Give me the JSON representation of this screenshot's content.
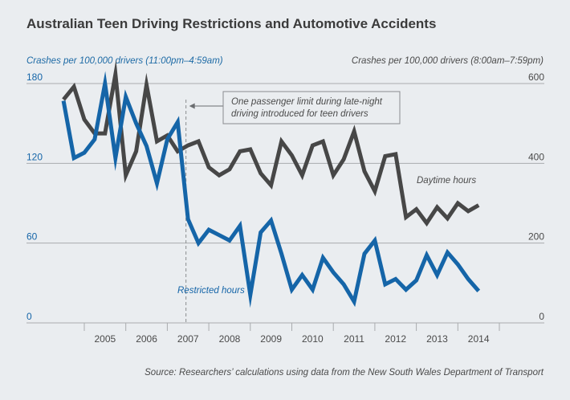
{
  "title": "Australian Teen Driving Restrictions and Automotive Accidents",
  "left_axis_title": "Crashes per 100,000 drivers (11:00pm–4:59am)",
  "right_axis_title": "Crashes per 100,000 drivers (8:00am–7:59pm)",
  "source": "Source: Researchers’ calculations using data from the New South Wales Department of Transport",
  "annotation": {
    "line1": "One passenger limit during late-night",
    "line2": "driving introduced for teen drivers",
    "x": 2007.45
  },
  "colors": {
    "restricted": "#1565a8",
    "daytime": "#474747",
    "grid": "#a9abae",
    "left_ticks": "#1565a8",
    "right_ticks": "#4a4a4a",
    "background": "#eaedf0"
  },
  "chart_data": {
    "type": "line",
    "xlim": [
      2004.42,
      2015.58
    ],
    "x_ticks": [
      "2005",
      "2006",
      "2007",
      "2008",
      "2009",
      "2010",
      "2011",
      "2012",
      "2013",
      "2014"
    ],
    "y_left": {
      "lim": [
        0,
        180
      ],
      "ticks": [
        "0",
        "60",
        "120",
        "180"
      ]
    },
    "y_right": {
      "lim": [
        0,
        600
      ],
      "ticks": [
        "0",
        "200",
        "400",
        "600"
      ]
    },
    "grid": true,
    "series": [
      {
        "name": "Restricted hours",
        "axis": "left",
        "x": [
          2004.5,
          2004.75,
          2005.0,
          2005.25,
          2005.5,
          2005.75,
          2006.0,
          2006.25,
          2006.5,
          2006.75,
          2007.0,
          2007.25,
          2007.5,
          2007.75,
          2008.0,
          2008.25,
          2008.5,
          2008.75,
          2009.0,
          2009.25,
          2009.5,
          2009.75,
          2010.0,
          2010.25,
          2010.5,
          2010.75,
          2011.0,
          2011.25,
          2011.5,
          2011.75,
          2012.0,
          2012.25,
          2012.5,
          2012.75,
          2013.0,
          2013.25,
          2013.5,
          2013.75,
          2014.0,
          2014.25,
          2014.5
        ],
        "values": [
          167,
          124,
          128,
          138,
          180,
          124,
          170,
          150,
          133,
          105,
          138,
          151,
          78,
          60,
          70,
          66,
          62,
          73,
          21,
          68,
          77,
          52,
          25,
          36,
          25,
          49,
          38,
          29,
          16,
          52,
          62,
          29,
          33,
          25,
          32,
          51,
          36,
          53,
          44,
          33,
          24
        ]
      },
      {
        "name": "Daytime hours",
        "axis": "right",
        "x": [
          2004.5,
          2004.75,
          2005.0,
          2005.25,
          2005.5,
          2005.75,
          2006.0,
          2006.25,
          2006.5,
          2006.75,
          2007.0,
          2007.25,
          2007.5,
          2007.75,
          2008.0,
          2008.25,
          2008.5,
          2008.75,
          2009.0,
          2009.25,
          2009.5,
          2009.75,
          2010.0,
          2010.25,
          2010.5,
          2010.75,
          2011.0,
          2011.25,
          2011.5,
          2011.75,
          2012.0,
          2012.25,
          2012.5,
          2012.75,
          2013.0,
          2013.25,
          2013.5,
          2013.75,
          2014.0,
          2014.25,
          2014.5
        ],
        "values": [
          560,
          592,
          510,
          475,
          475,
          623,
          370,
          430,
          597,
          455,
          470,
          430,
          445,
          455,
          390,
          370,
          385,
          430,
          435,
          375,
          345,
          455,
          420,
          370,
          445,
          455,
          370,
          410,
          480,
          380,
          330,
          418,
          423,
          265,
          285,
          250,
          290,
          262,
          300,
          280,
          295
        ]
      }
    ],
    "labels": {
      "daytime": "Daytime hours",
      "restricted": "Restricted hours"
    }
  }
}
